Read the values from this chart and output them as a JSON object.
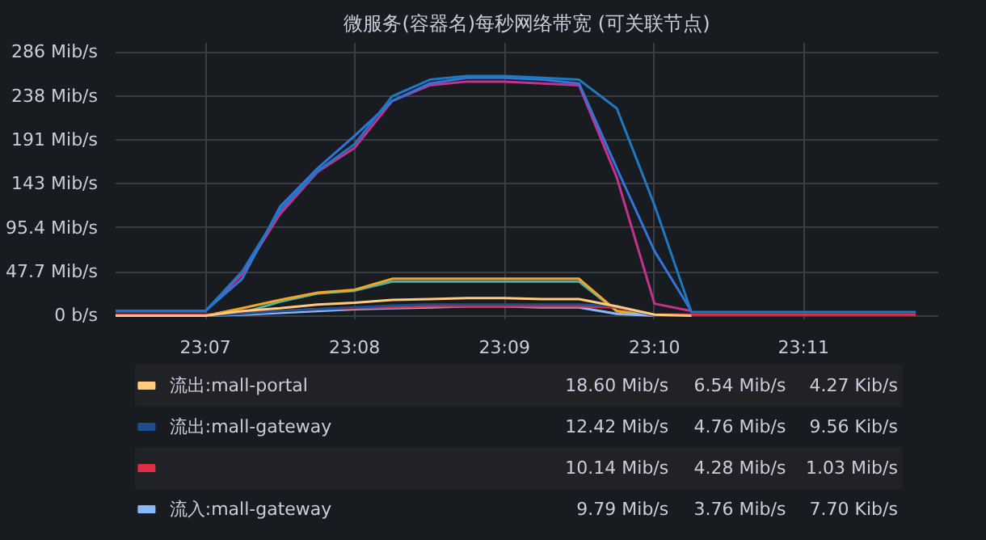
{
  "chart_data": {
    "type": "line",
    "title": "微服务(容器名)每秒网络带宽 (可关联节点)",
    "x": [
      23.1067,
      23.1167,
      23.1208,
      23.125,
      23.1292,
      23.1333,
      23.1375,
      23.1417,
      23.1458,
      23.15,
      23.1542,
      23.1583,
      23.1625,
      23.1667,
      23.1708,
      23.175,
      23.1833,
      23.1917,
      23.1958
    ],
    "series": [
      {
        "name": "流出:mall-portal",
        "color": "#ffcb7d",
        "values": [
          0,
          0,
          5,
          8,
          12,
          14,
          17,
          18,
          19,
          19,
          18,
          18,
          10,
          1,
          0,
          null,
          null,
          null,
          null
        ]
      },
      {
        "name": "流出:mall-gateway",
        "color": "#1f4e8c",
        "values": [
          0,
          0,
          2,
          5,
          7,
          9,
          11,
          12,
          12,
          12,
          12,
          12,
          10,
          0,
          0,
          null,
          null,
          null,
          null
        ]
      },
      {
        "color": "#e02f44",
        "values": [
          1,
          1,
          3,
          5,
          7,
          8,
          9,
          10,
          10,
          10,
          10,
          10,
          9,
          1,
          1,
          1,
          1,
          1,
          1
        ]
      },
      {
        "name": "流入:mall-gateway",
        "color": "#8ab8ff",
        "values": [
          0,
          0,
          1,
          3,
          5,
          7,
          8,
          9,
          10,
          10,
          9,
          9,
          2,
          0,
          0,
          null,
          null,
          null,
          null
        ]
      },
      {
        "color": "#1f78c1",
        "values": [
          5,
          5,
          48,
          114,
          157,
          186,
          238,
          256,
          260,
          260,
          258,
          256,
          225,
          120,
          4,
          4,
          4,
          4,
          4
        ]
      },
      {
        "color": "#3274d9",
        "values": [
          5,
          5,
          40,
          118,
          160,
          195,
          233,
          252,
          258,
          258,
          256,
          252,
          160,
          70,
          5,
          null,
          null,
          null,
          null
        ]
      },
      {
        "color": "#c4328f",
        "values": [
          5,
          5,
          45,
          110,
          156,
          182,
          233,
          250,
          254,
          254,
          252,
          250,
          150,
          13,
          5,
          null,
          null,
          null,
          null
        ]
      },
      {
        "color": "#f2a626",
        "values": [
          0,
          0,
          8,
          17,
          25,
          28,
          40,
          40,
          40,
          40,
          40,
          40,
          5,
          0,
          0,
          null,
          null,
          null,
          null
        ]
      },
      {
        "color": "#4fb3a8",
        "values": [
          0,
          0,
          3,
          15,
          24,
          27,
          37,
          37,
          37,
          37,
          37,
          37,
          5,
          0,
          0,
          null,
          null,
          null,
          null
        ]
      }
    ],
    "xlim": [
      23.1067,
      23.1983
    ],
    "xticks": [
      {
        "value": 23.1167,
        "label": "23:07"
      },
      {
        "value": 23.1333,
        "label": "23:08"
      },
      {
        "value": 23.15,
        "label": "23:09"
      },
      {
        "value": 23.1667,
        "label": "23:10"
      },
      {
        "value": 23.1833,
        "label": "23:11"
      }
    ],
    "ylim": [
      -4,
      296
    ],
    "yticks": [
      {
        "value": 0,
        "label": "0 b/s"
      },
      {
        "value": 47.7,
        "label": "47.7 Mib/s"
      },
      {
        "value": 95.4,
        "label": "95.4 Mib/s"
      },
      {
        "value": 143,
        "label": "143 Mib/s"
      },
      {
        "value": 191,
        "label": "191 Mib/s"
      },
      {
        "value": 238,
        "label": "238 Mib/s"
      },
      {
        "value": 286,
        "label": "286 Mib/s"
      }
    ],
    "grid": true,
    "legend": "bottom",
    "marker": "none",
    "line_style": "solid",
    "annotations": [
      "18.60 Mib/s",
      "6.54 Mib/s",
      "4.27 Kib/s",
      "12.42 Mib/s",
      "4.76 Mib/s",
      "9.56 Kib/s",
      "10.14 Mib/s",
      "4.28 Mib/s",
      "1.03 Mib/s",
      "9.79 Mib/s",
      "3.76 Mib/s",
      "7.70 Kib/s"
    ]
  }
}
